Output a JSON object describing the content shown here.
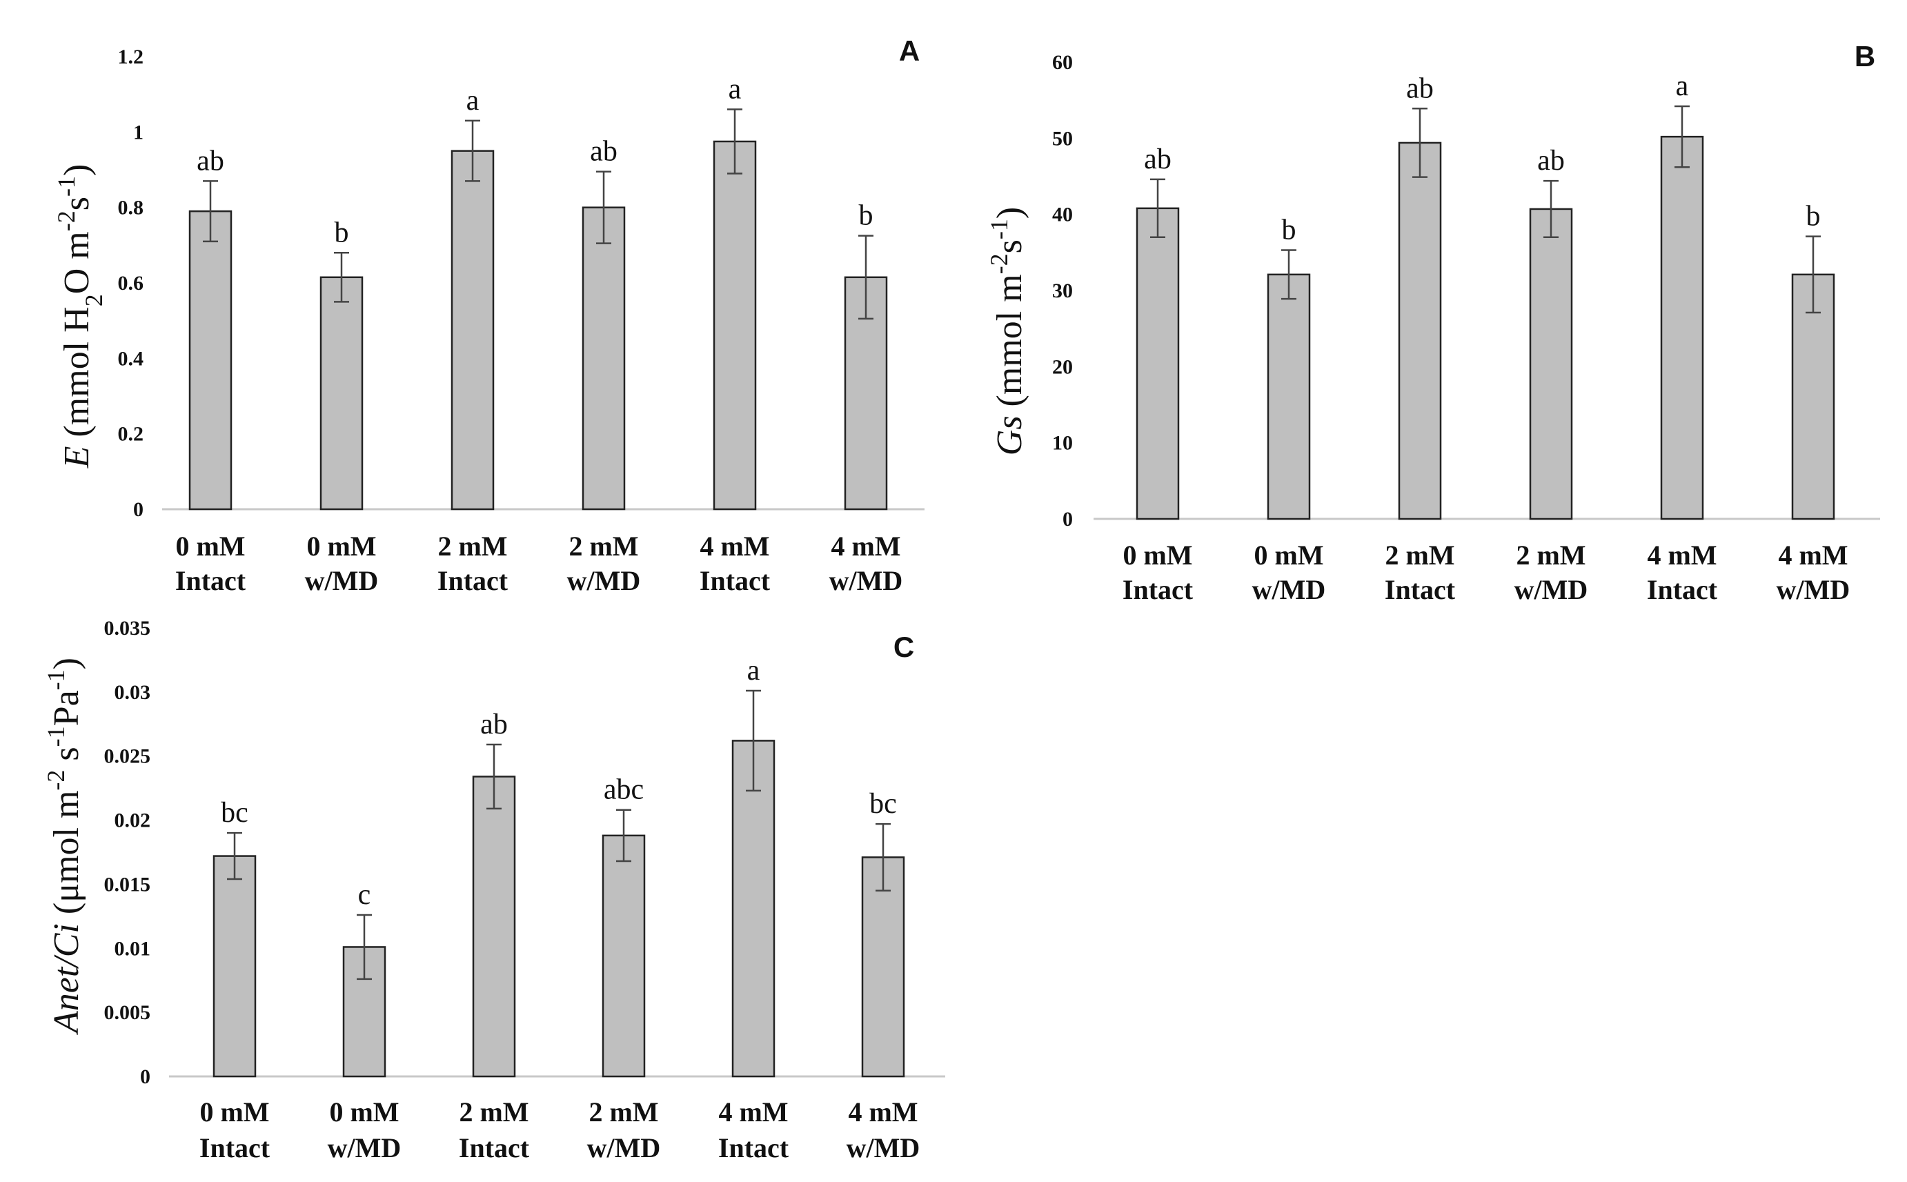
{
  "colors": {
    "bar_fill": "#bfbfbf",
    "bar_stroke": "#222222",
    "axis": "#c8c8c8",
    "error_bar": "#444444"
  },
  "chart_data": [
    {
      "panel": "A",
      "type": "bar",
      "categories": [
        [
          "0 mM",
          "Intact"
        ],
        [
          "0 mM",
          "w/MD"
        ],
        [
          "2 mM",
          "Intact"
        ],
        [
          "2 mM",
          "w/MD"
        ],
        [
          "4 mM",
          "Intact"
        ],
        [
          "4 mM",
          "w/MD"
        ]
      ],
      "values": [
        0.79,
        0.615,
        0.95,
        0.8,
        0.975,
        0.615
      ],
      "errors": [
        0.08,
        0.065,
        0.08,
        0.095,
        0.085,
        0.11
      ],
      "significance": [
        "ab",
        "b",
        "a",
        "ab",
        "a",
        "b"
      ],
      "ylabel": {
        "italic": "E",
        "text": " (mmol H",
        "sub": "2",
        "text2": "O m",
        "sup1": "-2",
        "text3": "s",
        "sup2": "-1",
        "text4": ")"
      },
      "ylim": [
        0,
        1.2
      ],
      "yticks": [
        "0",
        "0.2",
        "0.4",
        "0.6",
        "0.8",
        "1",
        "1.2"
      ],
      "ytick_values": [
        0,
        0.2,
        0.4,
        0.6,
        0.8,
        1,
        1.2
      ]
    },
    {
      "panel": "B",
      "type": "bar",
      "categories": [
        [
          "0 mM",
          "Intact"
        ],
        [
          "0 mM",
          "w/MD"
        ],
        [
          "2 mM",
          "Intact"
        ],
        [
          "2 mM",
          "w/MD"
        ],
        [
          "4 mM",
          "Intact"
        ],
        [
          "4 mM",
          "w/MD"
        ]
      ],
      "values": [
        40.8,
        32.1,
        49.4,
        40.7,
        50.2,
        32.1
      ],
      "errors": [
        3.8,
        3.2,
        4.5,
        3.7,
        4.0,
        5.0
      ],
      "significance": [
        "ab",
        "b",
        "ab",
        "ab",
        "a",
        "b"
      ],
      "ylabel": {
        "italic": "Gs",
        "text": " (mmol m",
        "sup1": "-2",
        "text2": "s",
        "sup2": "-1",
        "text3": ")"
      },
      "ylim": [
        0,
        60
      ],
      "yticks": [
        "0",
        "10",
        "20",
        "30",
        "40",
        "50",
        "60"
      ],
      "ytick_values": [
        0,
        10,
        20,
        30,
        40,
        50,
        60
      ]
    },
    {
      "panel": "C",
      "type": "bar",
      "categories": [
        [
          "0 mM",
          "Intact"
        ],
        [
          "0 mM",
          "w/MD"
        ],
        [
          "2 mM",
          "Intact"
        ],
        [
          "2 mM",
          "w/MD"
        ],
        [
          "4 mM",
          "Intact"
        ],
        [
          "4 mM",
          "w/MD"
        ]
      ],
      "values": [
        0.0172,
        0.0101,
        0.0234,
        0.0188,
        0.0262,
        0.0171
      ],
      "errors": [
        0.0018,
        0.0025,
        0.0025,
        0.002,
        0.0039,
        0.0026
      ],
      "significance": [
        "bc",
        "c",
        "ab",
        "abc",
        "a",
        "bc"
      ],
      "ylabel": {
        "italic": "Anet/Ci",
        "text": " (μmol m",
        "sup1": "-2",
        "text2": " s",
        "sup2": "-1",
        "text3": "Pa",
        "sup3": "-1",
        "text4": ")"
      },
      "ylim": [
        0,
        0.035
      ],
      "yticks": [
        "0",
        "0.005",
        "0.01",
        "0.015",
        "0.02",
        "0.025",
        "0.03",
        "0.035"
      ],
      "ytick_values": [
        0,
        0.005,
        0.01,
        0.015,
        0.02,
        0.025,
        0.03,
        0.035
      ]
    }
  ]
}
